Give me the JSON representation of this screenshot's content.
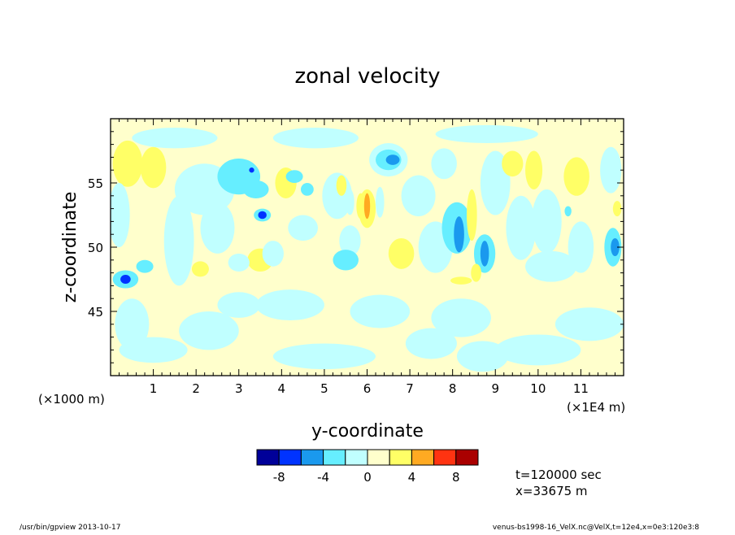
{
  "chart_data": {
    "type": "heatmap",
    "title": "zonal velocity",
    "xlabel": "y-coordinate",
    "ylabel": "z-coordinate",
    "x_unit_left": "(×1000 m)",
    "x_unit_right": "(×1E4 m)",
    "xlim": [
      0,
      12
    ],
    "ylim": [
      40,
      60
    ],
    "x_ticks": [
      "1",
      "2",
      "3",
      "4",
      "5",
      "6",
      "7",
      "8",
      "9",
      "10",
      "11"
    ],
    "x_tick_values": [
      1,
      2,
      3,
      4,
      5,
      6,
      7,
      8,
      9,
      10,
      11
    ],
    "y_ticks": [
      "45",
      "50",
      "55"
    ],
    "y_tick_values": [
      45,
      50,
      55
    ],
    "colorbar": {
      "boundaries": [
        -10,
        -8,
        -6,
        -4,
        -2,
        0,
        2,
        4,
        6,
        8,
        10
      ],
      "colors": [
        "#000099",
        "#0033ff",
        "#1a99ee",
        "#66eeff",
        "#c0ffff",
        "#ffffcc",
        "#ffff66",
        "#ffaa22",
        "#ff3311",
        "#aa0000"
      ],
      "labels": [
        "-8",
        "-4",
        "0",
        "4",
        "8"
      ],
      "label_values": [
        -8,
        -4,
        0,
        4,
        8
      ]
    },
    "background_value": 1,
    "blobs": [
      {
        "x": 0.4,
        "y": 56.5,
        "rx": 0.35,
        "ry": 1.8,
        "v": 3
      },
      {
        "x": 1.0,
        "y": 56.2,
        "rx": 0.3,
        "ry": 1.6,
        "v": 3
      },
      {
        "x": 0.2,
        "y": 52.5,
        "rx": 0.25,
        "ry": 2.5,
        "v": -1
      },
      {
        "x": 0.35,
        "y": 47.5,
        "rx": 0.3,
        "ry": 0.7,
        "v": -3
      },
      {
        "x": 0.35,
        "y": 47.5,
        "rx": 0.12,
        "ry": 0.35,
        "v": -7
      },
      {
        "x": 0.8,
        "y": 48.5,
        "rx": 0.2,
        "ry": 0.5,
        "v": -3
      },
      {
        "x": 1.6,
        "y": 50.5,
        "rx": 0.35,
        "ry": 3.5,
        "v": -1
      },
      {
        "x": 2.1,
        "y": 48.3,
        "rx": 0.2,
        "ry": 0.6,
        "v": 3
      },
      {
        "x": 2.2,
        "y": 54.5,
        "rx": 0.7,
        "ry": 2.0,
        "v": -1
      },
      {
        "x": 2.5,
        "y": 51.5,
        "rx": 0.4,
        "ry": 2.0,
        "v": -1
      },
      {
        "x": 2.3,
        "y": 43.5,
        "rx": 0.7,
        "ry": 1.5,
        "v": -1
      },
      {
        "x": 1.0,
        "y": 42,
        "rx": 0.8,
        "ry": 1.0,
        "v": -1
      },
      {
        "x": 3.0,
        "y": 55.5,
        "rx": 0.5,
        "ry": 1.4,
        "v": -3
      },
      {
        "x": 3.4,
        "y": 54.5,
        "rx": 0.3,
        "ry": 0.7,
        "v": -3
      },
      {
        "x": 3.55,
        "y": 52.5,
        "rx": 0.2,
        "ry": 0.5,
        "v": -3
      },
      {
        "x": 3.55,
        "y": 52.5,
        "rx": 0.1,
        "ry": 0.3,
        "v": -7
      },
      {
        "x": 3.3,
        "y": 56.0,
        "rx": 0.06,
        "ry": 0.2,
        "v": -7
      },
      {
        "x": 3.5,
        "y": 49.0,
        "rx": 0.3,
        "ry": 0.9,
        "v": 3
      },
      {
        "x": 3.8,
        "y": 49.5,
        "rx": 0.25,
        "ry": 1.0,
        "v": -1
      },
      {
        "x": 3.0,
        "y": 48.8,
        "rx": 0.25,
        "ry": 0.7,
        "v": -1
      },
      {
        "x": 4.1,
        "y": 55.0,
        "rx": 0.25,
        "ry": 1.2,
        "v": 3
      },
      {
        "x": 4.5,
        "y": 51.5,
        "rx": 0.35,
        "ry": 1.0,
        "v": -1
      },
      {
        "x": 4.2,
        "y": 45.5,
        "rx": 0.8,
        "ry": 1.2,
        "v": -1
      },
      {
        "x": 4.3,
        "y": 55.5,
        "rx": 0.2,
        "ry": 0.5,
        "v": -3
      },
      {
        "x": 4.6,
        "y": 54.5,
        "rx": 0.15,
        "ry": 0.5,
        "v": -3
      },
      {
        "x": 5.3,
        "y": 54.0,
        "rx": 0.35,
        "ry": 1.8,
        "v": -1
      },
      {
        "x": 5.4,
        "y": 54.8,
        "rx": 0.12,
        "ry": 0.8,
        "v": 3
      },
      {
        "x": 5.6,
        "y": 53.5,
        "rx": 0.1,
        "ry": 1.0,
        "v": -1
      },
      {
        "x": 5.85,
        "y": 53.2,
        "rx": 0.1,
        "ry": 1.0,
        "v": 3
      },
      {
        "x": 6.0,
        "y": 53.0,
        "rx": 0.2,
        "ry": 1.5,
        "v": 3
      },
      {
        "x": 6.0,
        "y": 53.2,
        "rx": 0.07,
        "ry": 1.0,
        "v": 5
      },
      {
        "x": 6.3,
        "y": 53.5,
        "rx": 0.1,
        "ry": 1.2,
        "v": -1
      },
      {
        "x": 5.6,
        "y": 50.5,
        "rx": 0.25,
        "ry": 1.2,
        "v": -1
      },
      {
        "x": 5.5,
        "y": 49.0,
        "rx": 0.3,
        "ry": 0.8,
        "v": -3
      },
      {
        "x": 6.5,
        "y": 56.8,
        "rx": 0.45,
        "ry": 1.3,
        "v": -1
      },
      {
        "x": 6.5,
        "y": 56.8,
        "rx": 0.3,
        "ry": 0.8,
        "v": -3
      },
      {
        "x": 6.6,
        "y": 56.8,
        "rx": 0.16,
        "ry": 0.4,
        "v": -5
      },
      {
        "x": 6.8,
        "y": 49.5,
        "rx": 0.3,
        "ry": 1.2,
        "v": 3
      },
      {
        "x": 6.3,
        "y": 45.0,
        "rx": 0.7,
        "ry": 1.3,
        "v": -1
      },
      {
        "x": 7.2,
        "y": 54.0,
        "rx": 0.4,
        "ry": 1.6,
        "v": -1
      },
      {
        "x": 7.8,
        "y": 56.5,
        "rx": 0.3,
        "ry": 1.2,
        "v": -1
      },
      {
        "x": 7.6,
        "y": 50.0,
        "rx": 0.4,
        "ry": 2.0,
        "v": -1
      },
      {
        "x": 8.1,
        "y": 51.5,
        "rx": 0.35,
        "ry": 2.0,
        "v": -3
      },
      {
        "x": 8.15,
        "y": 51.0,
        "rx": 0.12,
        "ry": 1.4,
        "v": -5
      },
      {
        "x": 8.45,
        "y": 52.5,
        "rx": 0.12,
        "ry": 2.0,
        "v": 3
      },
      {
        "x": 8.75,
        "y": 49.5,
        "rx": 0.25,
        "ry": 1.5,
        "v": -3
      },
      {
        "x": 8.75,
        "y": 49.5,
        "rx": 0.1,
        "ry": 1.0,
        "v": -5
      },
      {
        "x": 8.55,
        "y": 48.0,
        "rx": 0.12,
        "ry": 0.7,
        "v": 3
      },
      {
        "x": 8.2,
        "y": 47.4,
        "rx": 0.25,
        "ry": 0.3,
        "v": 3
      },
      {
        "x": 8.2,
        "y": 44.5,
        "rx": 0.7,
        "ry": 1.5,
        "v": -1
      },
      {
        "x": 8.7,
        "y": 41.5,
        "rx": 0.6,
        "ry": 1.2,
        "v": -1
      },
      {
        "x": 9.0,
        "y": 55.0,
        "rx": 0.35,
        "ry": 2.5,
        "v": -1
      },
      {
        "x": 9.4,
        "y": 56.5,
        "rx": 0.25,
        "ry": 1.0,
        "v": 3
      },
      {
        "x": 9.6,
        "y": 51.5,
        "rx": 0.35,
        "ry": 2.5,
        "v": -1
      },
      {
        "x": 9.9,
        "y": 56.0,
        "rx": 0.2,
        "ry": 1.5,
        "v": 3
      },
      {
        "x": 10.2,
        "y": 52.0,
        "rx": 0.35,
        "ry": 2.5,
        "v": -1
      },
      {
        "x": 10.3,
        "y": 48.5,
        "rx": 0.6,
        "ry": 1.2,
        "v": -1
      },
      {
        "x": 10.7,
        "y": 52.8,
        "rx": 0.08,
        "ry": 0.4,
        "v": -3
      },
      {
        "x": 10.9,
        "y": 55.5,
        "rx": 0.3,
        "ry": 1.5,
        "v": 3
      },
      {
        "x": 11.0,
        "y": 50.0,
        "rx": 0.3,
        "ry": 2.0,
        "v": -1
      },
      {
        "x": 11.75,
        "y": 50.0,
        "rx": 0.2,
        "ry": 1.5,
        "v": -3
      },
      {
        "x": 11.8,
        "y": 50.0,
        "rx": 0.1,
        "ry": 0.7,
        "v": -5
      },
      {
        "x": 11.7,
        "y": 56.0,
        "rx": 0.25,
        "ry": 1.8,
        "v": -1
      },
      {
        "x": 11.85,
        "y": 53.0,
        "rx": 0.1,
        "ry": 0.6,
        "v": 3
      },
      {
        "x": 10.0,
        "y": 42.0,
        "rx": 1.0,
        "ry": 1.2,
        "v": -1
      },
      {
        "x": 11.2,
        "y": 44.0,
        "rx": 0.8,
        "ry": 1.3,
        "v": -1
      },
      {
        "x": 5.0,
        "y": 41.5,
        "rx": 1.2,
        "ry": 1.0,
        "v": -1
      },
      {
        "x": 3.0,
        "y": 45.5,
        "rx": 0.5,
        "ry": 1.0,
        "v": -1
      },
      {
        "x": 7.5,
        "y": 42.5,
        "rx": 0.6,
        "ry": 1.2,
        "v": -1
      },
      {
        "x": 0.5,
        "y": 44.0,
        "rx": 0.4,
        "ry": 2.0,
        "v": -1
      },
      {
        "x": 1.5,
        "y": 58.5,
        "rx": 1.0,
        "ry": 0.8,
        "v": -1
      },
      {
        "x": 4.8,
        "y": 58.5,
        "rx": 1.0,
        "ry": 0.8,
        "v": -1
      },
      {
        "x": 8.8,
        "y": 58.8,
        "rx": 1.2,
        "ry": 0.7,
        "v": -1
      }
    ]
  },
  "info": {
    "time": "t=120000 sec",
    "position": "x=33675 m"
  },
  "footer": {
    "left": "/usr/bin/gpview  2013-10-17",
    "right": "venus-bs1998-16_VelX.nc@VelX,t=12e4,x=0e3:120e3:8"
  }
}
